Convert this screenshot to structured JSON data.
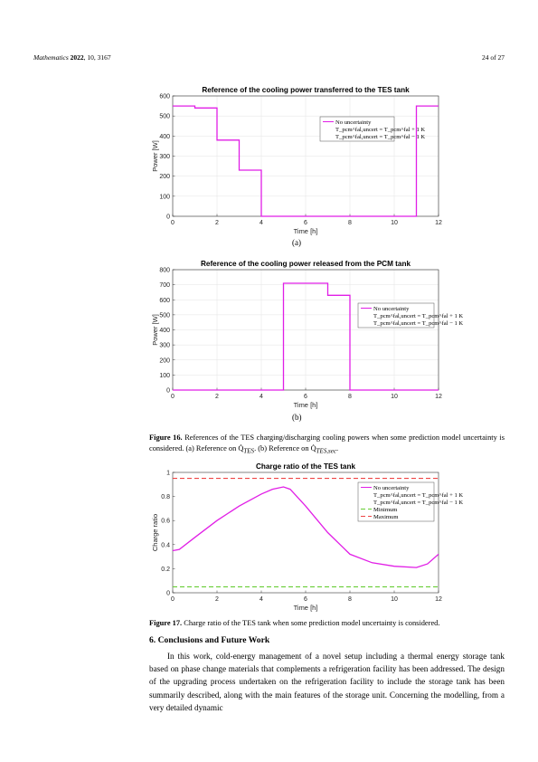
{
  "header": {
    "journal": "Mathematics",
    "year": "2022",
    "citation": ", 10, 3167",
    "page": "24 of 27"
  },
  "colors": {
    "no_uncertainty": "#e11ee6",
    "plus_1K": "#1f1fcc",
    "minus_1K": "#000000",
    "minimum": "#66cc33",
    "maximum": "#ee4444"
  },
  "legend": {
    "no_uncertainty": "No uncertainty",
    "plus": "T_pcm^fal,uncert = T_pcm^fal + 1 K",
    "minus": "T_pcm^fal,uncert = T_pcm^fal − 1 K",
    "minimum": "Minimum",
    "maximum": "Maximum"
  },
  "figure16": {
    "panel_a_label": "(a)",
    "panel_b_label": "(b)",
    "caption_head": "Figure 16.",
    "caption_text": " References of the TES charging/discharging cooling powers when some prediction model uncertainty is considered. (a) Reference on Q̇",
    "caption_sub1": "TES",
    "caption_mid": ". (b) Reference on Q̇",
    "caption_sub2": "TES,sec",
    "caption_end": "."
  },
  "figure17": {
    "caption_head": "Figure 17.",
    "caption_text": " Charge ratio of the TES tank when some prediction model uncertainty is considered."
  },
  "section": {
    "title": "6. Conclusions and Future Work",
    "paragraph": "In this work, cold-energy management of a novel setup including a thermal energy storage tank based on phase change materials that complements a refrigeration facility has been addressed. The design of the upgrading process undertaken on the refrigeration facility to include the storage tank has been summarily described, along with the main features of the storage unit. Concerning the modelling, from a very detailed dynamic"
  },
  "chart_data": [
    {
      "type": "line",
      "title": "Reference of the cooling power transferred to the TES tank",
      "xlabel": "Time [h]",
      "ylabel": "Power [W]",
      "xlim": [
        0,
        12
      ],
      "ylim": [
        0,
        600
      ],
      "xticks": [
        0,
        2,
        4,
        6,
        8,
        10,
        12
      ],
      "yticks": [
        0,
        100,
        200,
        300,
        400,
        500,
        600
      ],
      "grid": true,
      "legend_position": "center-right",
      "series": [
        {
          "key": "no_uncertainty",
          "style": "solid",
          "x": [
            0,
            1,
            1,
            2,
            2,
            3,
            3,
            4,
            4,
            11,
            11,
            12
          ],
          "y": [
            550,
            550,
            540,
            540,
            380,
            380,
            230,
            230,
            0,
            0,
            550,
            550
          ]
        },
        {
          "key": "plus",
          "style": "dashdot",
          "x": [
            0,
            1,
            1,
            2,
            2,
            3,
            3,
            4,
            4,
            11,
            11,
            12
          ],
          "y": [
            550,
            550,
            500,
            500,
            380,
            380,
            230,
            230,
            0,
            0,
            550,
            550
          ]
        },
        {
          "key": "minus",
          "style": "dotted",
          "x": [
            0,
            1,
            1,
            2,
            2,
            3,
            3,
            4,
            4,
            11,
            11,
            12
          ],
          "y": [
            550,
            550,
            540,
            540,
            390,
            390,
            260,
            260,
            0,
            0,
            550,
            550
          ]
        }
      ]
    },
    {
      "type": "line",
      "title": "Reference of the cooling power released from the PCM tank",
      "xlabel": "Time [h]",
      "ylabel": "Power [W]",
      "xlim": [
        0,
        12
      ],
      "ylim": [
        0,
        800
      ],
      "xticks": [
        0,
        2,
        4,
        6,
        8,
        10,
        12
      ],
      "yticks": [
        0,
        100,
        200,
        300,
        400,
        500,
        600,
        700,
        800
      ],
      "grid": true,
      "legend_position": "center-right",
      "series": [
        {
          "key": "no_uncertainty",
          "style": "solid",
          "x": [
            0,
            5,
            5,
            7,
            7,
            8,
            8,
            12
          ],
          "y": [
            0,
            0,
            710,
            710,
            630,
            630,
            0,
            0
          ]
        },
        {
          "key": "plus",
          "style": "dashdot",
          "x": [
            0,
            5,
            5,
            7,
            7,
            8,
            8,
            12
          ],
          "y": [
            0,
            0,
            710,
            710,
            630,
            630,
            0,
            0
          ]
        },
        {
          "key": "minus",
          "style": "dotted",
          "x": [
            0,
            5,
            5,
            7,
            7,
            8,
            8,
            12
          ],
          "y": [
            0,
            0,
            710,
            710,
            630,
            630,
            0,
            0
          ]
        }
      ]
    },
    {
      "type": "line",
      "title": "Charge ratio of the TES tank",
      "xlabel": "Time [h]",
      "ylabel": "Charge ratio",
      "xlim": [
        0,
        12
      ],
      "ylim": [
        0,
        1
      ],
      "xticks": [
        0,
        2,
        4,
        6,
        8,
        10,
        12
      ],
      "yticks": [
        0,
        0.2,
        0.4,
        0.6,
        0.8,
        1
      ],
      "grid": false,
      "legend_position": "top-right",
      "series": [
        {
          "key": "no_uncertainty",
          "style": "solid",
          "x": [
            0,
            0.3,
            1,
            2,
            3,
            4,
            4.5,
            5,
            5.3,
            6,
            7,
            8,
            9,
            10,
            11,
            11.5,
            12
          ],
          "y": [
            0.35,
            0.36,
            0.46,
            0.6,
            0.72,
            0.82,
            0.86,
            0.88,
            0.86,
            0.72,
            0.5,
            0.32,
            0.25,
            0.22,
            0.21,
            0.24,
            0.32
          ]
        },
        {
          "key": "plus",
          "style": "dashdot",
          "x": [
            0,
            0.3,
            1,
            2,
            3,
            4,
            4.5,
            5,
            5.3,
            6,
            7,
            8,
            9,
            10,
            11,
            11.5,
            12
          ],
          "y": [
            0.35,
            0.36,
            0.46,
            0.6,
            0.72,
            0.83,
            0.87,
            0.89,
            0.87,
            0.73,
            0.51,
            0.31,
            0.24,
            0.21,
            0.2,
            0.23,
            0.31
          ]
        },
        {
          "key": "minus",
          "style": "dotted",
          "x": [
            0,
            0.3,
            1,
            2,
            3,
            4,
            4.5,
            5,
            5.3,
            6,
            7,
            8,
            9,
            10,
            11,
            11.5,
            12
          ],
          "y": [
            0.35,
            0.36,
            0.46,
            0.6,
            0.72,
            0.82,
            0.86,
            0.87,
            0.85,
            0.71,
            0.5,
            0.32,
            0.26,
            0.23,
            0.22,
            0.25,
            0.33
          ]
        },
        {
          "key": "minimum",
          "style": "dashed",
          "x": [
            0,
            12
          ],
          "y": [
            0.05,
            0.05
          ]
        },
        {
          "key": "maximum",
          "style": "dashed",
          "x": [
            0,
            12
          ],
          "y": [
            0.95,
            0.95
          ]
        }
      ]
    }
  ]
}
